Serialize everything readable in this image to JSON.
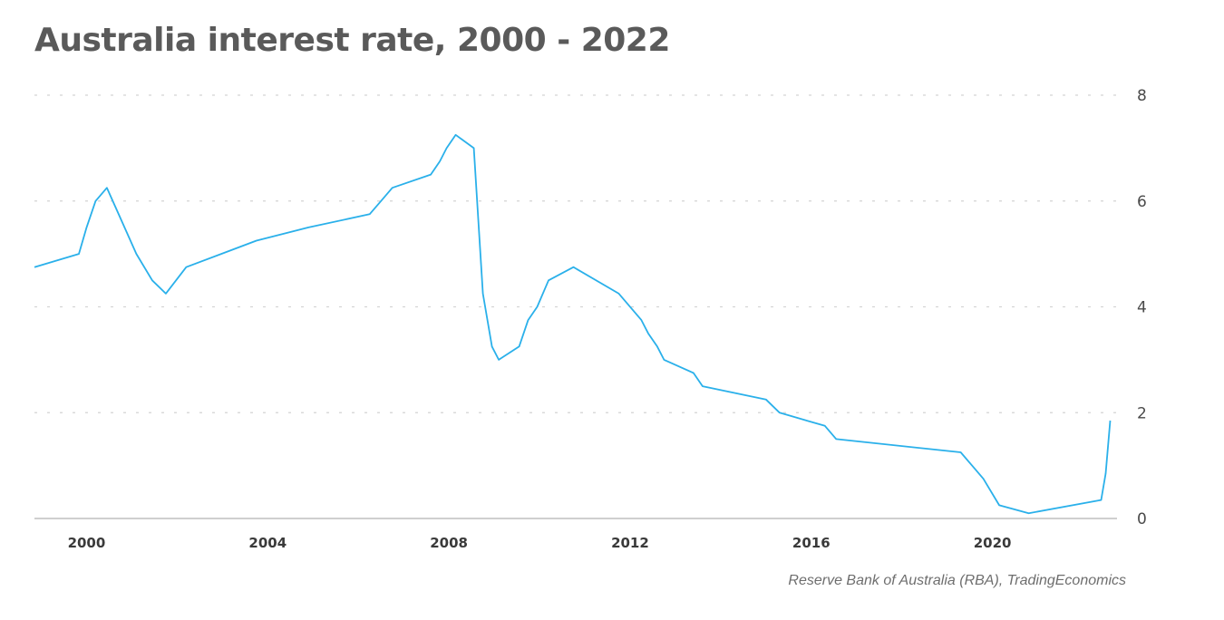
{
  "title": "Australia interest rate, 2000 - 2022",
  "source": "Reserve Bank of Australia (RBA), TradingEconomics",
  "chart_data": {
    "type": "line",
    "title": "Australia interest rate, 2000 - 2022",
    "xlabel": "",
    "ylabel": "",
    "xlim": [
      1998.85,
      2022.75
    ],
    "ylim": [
      0,
      8
    ],
    "x_ticks": [
      "2000",
      "2004",
      "2008",
      "2012",
      "2016",
      "2020"
    ],
    "y_ticks": [
      "0",
      "2",
      "4",
      "6",
      "8"
    ],
    "grid": true,
    "legend": "none",
    "series": [
      {
        "color": "#2ab0ea",
        "step": true,
        "x": [
          1998.85,
          1999.83,
          2000.0,
          2000.2,
          2000.45,
          2001.1,
          2001.45,
          2001.75,
          2002.2,
          2003.75,
          2004.9,
          2006.25,
          2006.5,
          2006.75,
          2007.6,
          2007.8,
          2007.95,
          2008.15,
          2008.55,
          2008.75,
          2008.95,
          2009.1,
          2009.55,
          2009.75,
          2009.95,
          2010.2,
          2010.75,
          2011.75,
          2012.25,
          2012.4,
          2012.6,
          2012.75,
          2013.4,
          2013.6,
          2015.0,
          2015.3,
          2016.3,
          2016.55,
          2019.3,
          2019.55,
          2019.8,
          2020.15,
          2020.8,
          2022.4,
          2022.5,
          2022.6
        ],
        "y": [
          4.75,
          5.0,
          5.5,
          6.0,
          6.25,
          5.0,
          4.5,
          4.25,
          4.75,
          5.25,
          5.5,
          5.75,
          6.0,
          6.25,
          6.5,
          6.75,
          7.0,
          7.25,
          7.0,
          4.25,
          3.25,
          3.0,
          3.25,
          3.75,
          4.0,
          4.5,
          4.75,
          4.25,
          3.75,
          3.5,
          3.25,
          3.0,
          2.75,
          2.5,
          2.25,
          2.0,
          1.75,
          1.5,
          1.25,
          1.0,
          0.75,
          0.25,
          0.1,
          0.35,
          0.85,
          1.85
        ]
      }
    ]
  }
}
